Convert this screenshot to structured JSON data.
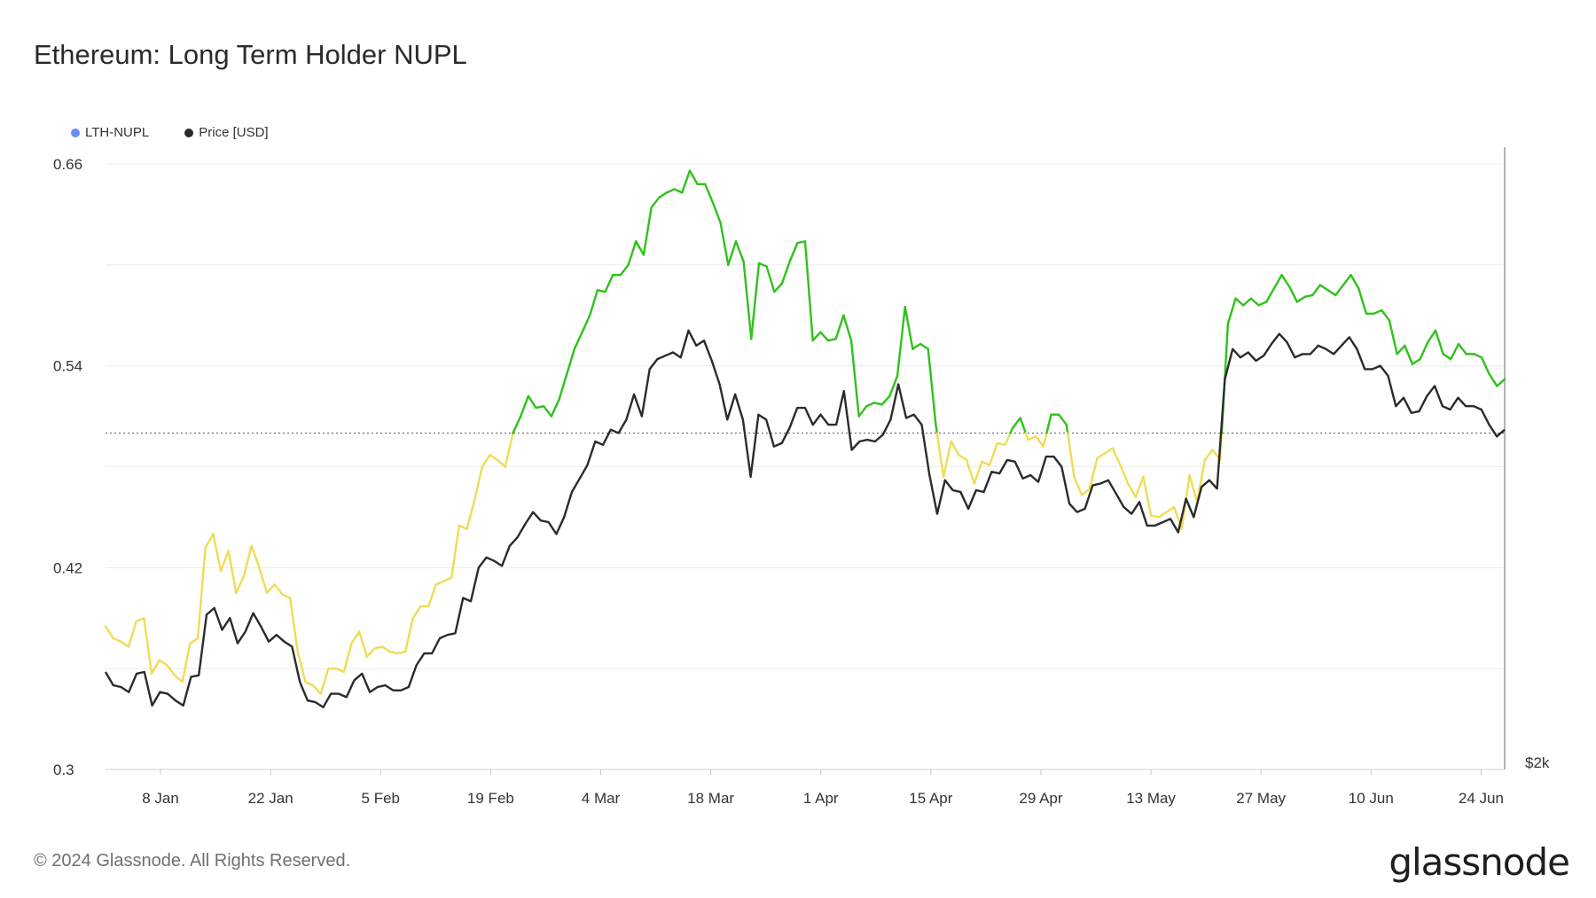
{
  "title": "Ethereum: Long Term Holder NUPL",
  "legend": [
    {
      "label": "LTH-NUPL",
      "color": "#6a8df0"
    },
    {
      "label": "Price [USD]",
      "color": "#2b2b2b"
    }
  ],
  "footer": "© 2024 Glassnode. All Rights Reserved.",
  "brand": "glassnode",
  "chart_data": {
    "type": "line",
    "x_range": [
      "2024-01-01",
      "2024-06-27"
    ],
    "x_ticks": [
      "8 Jan",
      "22 Jan",
      "5 Feb",
      "19 Feb",
      "4 Mar",
      "18 Mar",
      "1 Apr",
      "15 Apr",
      "29 Apr",
      "13 May",
      "27 May",
      "10 Jun",
      "24 Jun"
    ],
    "y_ticks": [
      0.66,
      0.54,
      0.42,
      0.3
    ],
    "y_range": [
      0.3,
      0.67
    ],
    "right_axis_label": "$2k",
    "threshold": 0.5,
    "colors": {
      "above": "#2fc21b",
      "below": "#f0dc56",
      "price": "#2b2b2b",
      "grid": "#ececec",
      "threshold": "#666666"
    },
    "series": [
      {
        "name": "LTH-NUPL",
        "values": [
          0.385,
          0.378,
          0.376,
          0.373,
          0.388,
          0.39,
          0.357,
          0.365,
          0.362,
          0.356,
          0.352,
          0.375,
          0.378,
          0.432,
          0.44,
          0.418,
          0.43,
          0.405,
          0.415,
          0.433,
          0.42,
          0.405,
          0.41,
          0.404,
          0.402,
          0.37,
          0.352,
          0.35,
          0.345,
          0.36,
          0.36,
          0.358,
          0.375,
          0.382,
          0.367,
          0.372,
          0.373,
          0.37,
          0.369,
          0.37,
          0.39,
          0.397,
          0.397,
          0.41,
          0.412,
          0.414,
          0.445,
          0.443,
          0.46,
          0.48,
          0.487,
          0.484,
          0.48,
          0.5,
          0.51,
          0.522,
          0.515,
          0.516,
          0.51,
          0.52,
          0.535,
          0.55,
          0.56,
          0.57,
          0.585,
          0.584,
          0.594,
          0.594,
          0.6,
          0.614,
          0.606,
          0.634,
          0.64,
          0.643,
          0.645,
          0.643,
          0.656,
          0.648,
          0.648,
          0.637,
          0.625,
          0.6,
          0.614,
          0.602,
          0.556,
          0.601,
          0.599,
          0.584,
          0.589,
          0.602,
          0.613,
          0.614,
          0.555,
          0.56,
          0.555,
          0.556,
          0.57,
          0.555,
          0.51,
          0.516,
          0.518,
          0.517,
          0.522,
          0.534,
          0.575,
          0.55,
          0.553,
          0.55,
          0.505,
          0.474,
          0.495,
          0.487,
          0.484,
          0.47,
          0.483,
          0.481,
          0.494,
          0.493,
          0.503,
          0.509,
          0.496,
          0.498,
          0.492,
          0.511,
          0.511,
          0.505,
          0.474,
          0.463,
          0.467,
          0.485,
          0.488,
          0.491,
          0.481,
          0.47,
          0.462,
          0.474,
          0.451,
          0.45,
          0.453,
          0.456,
          0.443,
          0.475,
          0.459,
          0.484,
          0.49,
          0.484,
          0.565,
          0.58,
          0.576,
          0.58,
          0.576,
          0.578,
          0.586,
          0.594,
          0.587,
          0.578,
          0.581,
          0.582,
          0.588,
          0.585,
          0.582,
          0.588,
          0.594,
          0.586,
          0.571,
          0.571,
          0.573,
          0.567,
          0.547,
          0.552,
          0.541,
          0.544,
          0.554,
          0.561,
          0.547,
          0.544,
          0.553,
          0.547,
          0.547,
          0.545,
          0.535,
          0.528,
          0.532
        ]
      },
      {
        "name": "Price [USD]",
        "values": [
          0.358,
          0.35,
          0.349,
          0.346,
          0.357,
          0.358,
          0.338,
          0.346,
          0.345,
          0.341,
          0.338,
          0.355,
          0.356,
          0.392,
          0.396,
          0.383,
          0.39,
          0.375,
          0.382,
          0.393,
          0.385,
          0.376,
          0.38,
          0.376,
          0.373,
          0.352,
          0.341,
          0.34,
          0.337,
          0.345,
          0.345,
          0.343,
          0.353,
          0.357,
          0.346,
          0.349,
          0.35,
          0.347,
          0.347,
          0.349,
          0.362,
          0.369,
          0.369,
          0.378,
          0.38,
          0.381,
          0.402,
          0.4,
          0.42,
          0.426,
          0.424,
          0.421,
          0.433,
          0.438,
          0.446,
          0.453,
          0.448,
          0.447,
          0.44,
          0.45,
          0.465,
          0.473,
          0.481,
          0.495,
          0.493,
          0.502,
          0.5,
          0.508,
          0.523,
          0.51,
          0.538,
          0.544,
          0.546,
          0.548,
          0.545,
          0.561,
          0.552,
          0.555,
          0.543,
          0.529,
          0.508,
          0.523,
          0.508,
          0.474,
          0.511,
          0.508,
          0.492,
          0.494,
          0.503,
          0.515,
          0.515,
          0.505,
          0.511,
          0.505,
          0.505,
          0.525,
          0.49,
          0.495,
          0.496,
          0.495,
          0.499,
          0.508,
          0.529,
          0.509,
          0.511,
          0.505,
          0.475,
          0.452,
          0.472,
          0.466,
          0.465,
          0.455,
          0.466,
          0.465,
          0.477,
          0.476,
          0.484,
          0.483,
          0.473,
          0.475,
          0.471,
          0.486,
          0.486,
          0.48,
          0.458,
          0.453,
          0.455,
          0.469,
          0.47,
          0.472,
          0.464,
          0.456,
          0.452,
          0.459,
          0.445,
          0.445,
          0.447,
          0.449,
          0.441,
          0.461,
          0.45,
          0.468,
          0.472,
          0.467,
          0.532,
          0.55,
          0.545,
          0.548,
          0.543,
          0.546,
          0.553,
          0.559,
          0.554,
          0.545,
          0.547,
          0.547,
          0.552,
          0.55,
          0.547,
          0.552,
          0.557,
          0.55,
          0.538,
          0.538,
          0.54,
          0.534,
          0.516,
          0.521,
          0.512,
          0.513,
          0.522,
          0.528,
          0.516,
          0.514,
          0.521,
          0.516,
          0.516,
          0.514,
          0.505,
          0.498,
          0.502
        ]
      }
    ]
  }
}
